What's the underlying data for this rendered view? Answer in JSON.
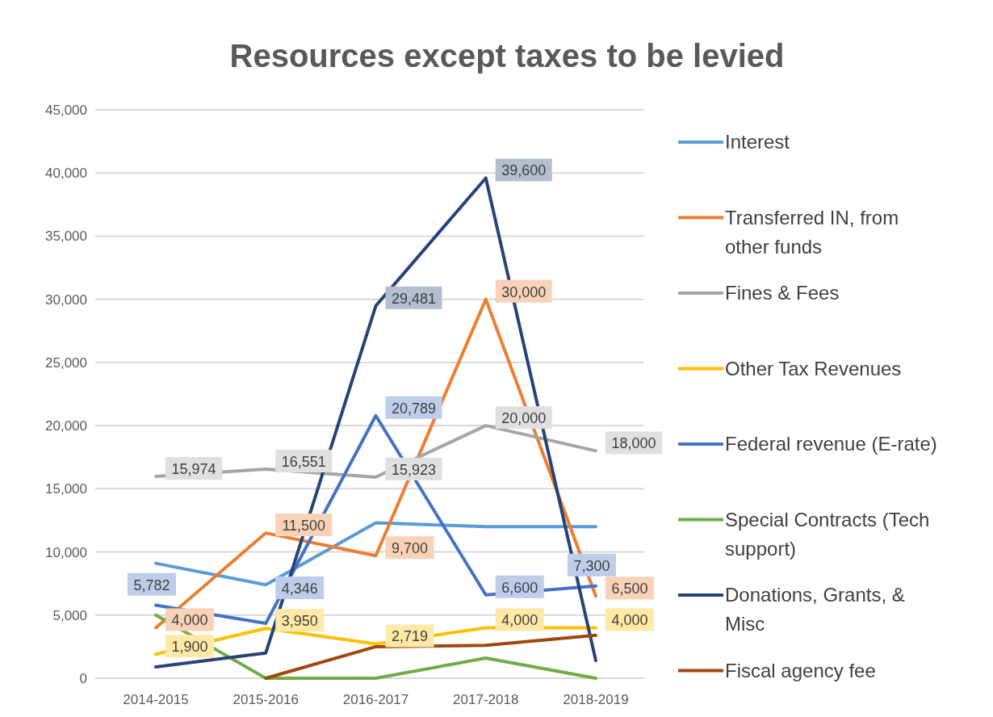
{
  "chart_data": {
    "type": "line",
    "title": "Resources except taxes to be levied",
    "categories": [
      "2014-2015",
      "2015-2016",
      "2016-2017",
      "2017-2018",
      "2018-2019"
    ],
    "series": [
      {
        "name": "Interest",
        "color": "#5b9bd5",
        "values": [
          9100,
          7400,
          12300,
          12000,
          12000
        ]
      },
      {
        "name": "Transferred IN, from other funds",
        "color": "#ed7d31",
        "values": [
          4000,
          11500,
          9700,
          30000,
          6500
        ],
        "value_labels": [
          "4,000",
          "11,500",
          "9,700",
          "30,000",
          "6,500"
        ]
      },
      {
        "name": "Fines & Fees",
        "color": "#a5a5a5",
        "values": [
          15974,
          16551,
          15923,
          20000,
          18000
        ],
        "value_labels": [
          "15,974",
          "16,551",
          "15,923",
          "20,000",
          "18,000"
        ]
      },
      {
        "name": "Other Tax Revenues",
        "color": "#ffc000",
        "values": [
          1900,
          3950,
          2719,
          4000,
          4000
        ],
        "value_labels": [
          "1,900",
          "3,950",
          "2,719",
          "4,000",
          "4,000"
        ]
      },
      {
        "name": "Federal revenue (E-rate)",
        "color": "#4472c4",
        "values": [
          5782,
          4346,
          20789,
          6600,
          7300
        ],
        "value_labels": [
          "5,782",
          "4,346",
          "20,789",
          "6,600",
          "7,300"
        ]
      },
      {
        "name": "Special Contracts (Tech support)",
        "color": "#70ad47",
        "values": [
          5000,
          0,
          0,
          1600,
          0
        ]
      },
      {
        "name": "Donations, Grants, & Misc",
        "color": "#264478",
        "values": [
          900,
          2000,
          29481,
          39600,
          1400
        ],
        "value_labels": [
          null,
          null,
          "29,481",
          "39,600",
          null
        ]
      },
      {
        "name": "Fiscal agency fee",
        "color": "#9e480e",
        "values": [
          null,
          0,
          2500,
          2600,
          3400
        ]
      }
    ],
    "ylim": [
      0,
      45000
    ],
    "yticks": [
      {
        "value": 0,
        "label": "0"
      },
      {
        "value": 5000,
        "label": "5,000"
      },
      {
        "value": 10000,
        "label": "10,000"
      },
      {
        "value": 15000,
        "label": "15,000"
      },
      {
        "value": 20000,
        "label": "20,000"
      },
      {
        "value": 25000,
        "label": "25,000"
      },
      {
        "value": 30000,
        "label": "30,000"
      },
      {
        "value": 35000,
        "label": "35,000"
      },
      {
        "value": 40000,
        "label": "40,000"
      },
      {
        "value": 45000,
        "label": "45,000"
      }
    ],
    "grid": "y",
    "legend": "right",
    "marker": "none",
    "line_style": "solid"
  }
}
